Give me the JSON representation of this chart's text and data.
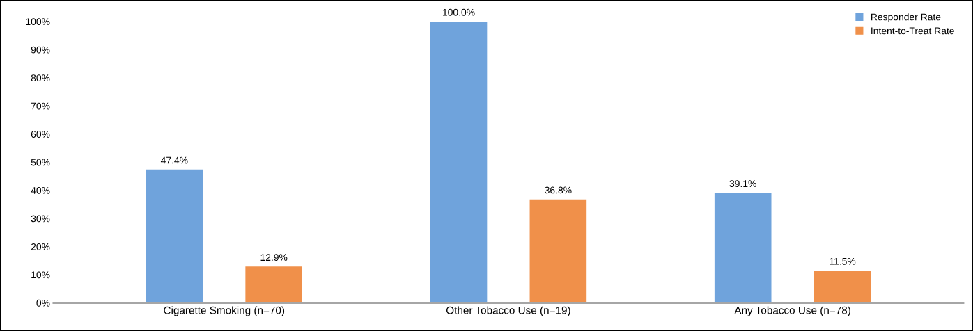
{
  "chart_data": {
    "type": "bar",
    "categories": [
      "Cigarette Smoking (n=70)",
      "Other Tobacco Use (n=19)",
      "Any Tobacco Use (n=78)"
    ],
    "series": [
      {
        "name": "Responder Rate",
        "color": "#6fa3dc",
        "values": [
          47.4,
          100.0,
          39.1
        ],
        "value_labels": [
          "47.4%",
          "100.0%",
          "39.1%"
        ]
      },
      {
        "name": "Intent-to-Treat Rate",
        "color": "#f0904a",
        "values": [
          12.9,
          36.8,
          11.5
        ],
        "value_labels": [
          "12.9%",
          "36.8%",
          "11.5%"
        ]
      }
    ],
    "ylim": [
      0,
      100
    ],
    "yticks": [
      {
        "value": 0,
        "label": "0%"
      },
      {
        "value": 10,
        "label": "10%"
      },
      {
        "value": 20,
        "label": "20%"
      },
      {
        "value": 30,
        "label": "30%"
      },
      {
        "value": 40,
        "label": "40%"
      },
      {
        "value": 50,
        "label": "50%"
      },
      {
        "value": 60,
        "label": "60%"
      },
      {
        "value": 70,
        "label": "70%"
      },
      {
        "value": 80,
        "label": "80%"
      },
      {
        "value": 90,
        "label": "90%"
      },
      {
        "value": 100,
        "label": "100%"
      }
    ],
    "grid": false,
    "legend": "top right"
  }
}
